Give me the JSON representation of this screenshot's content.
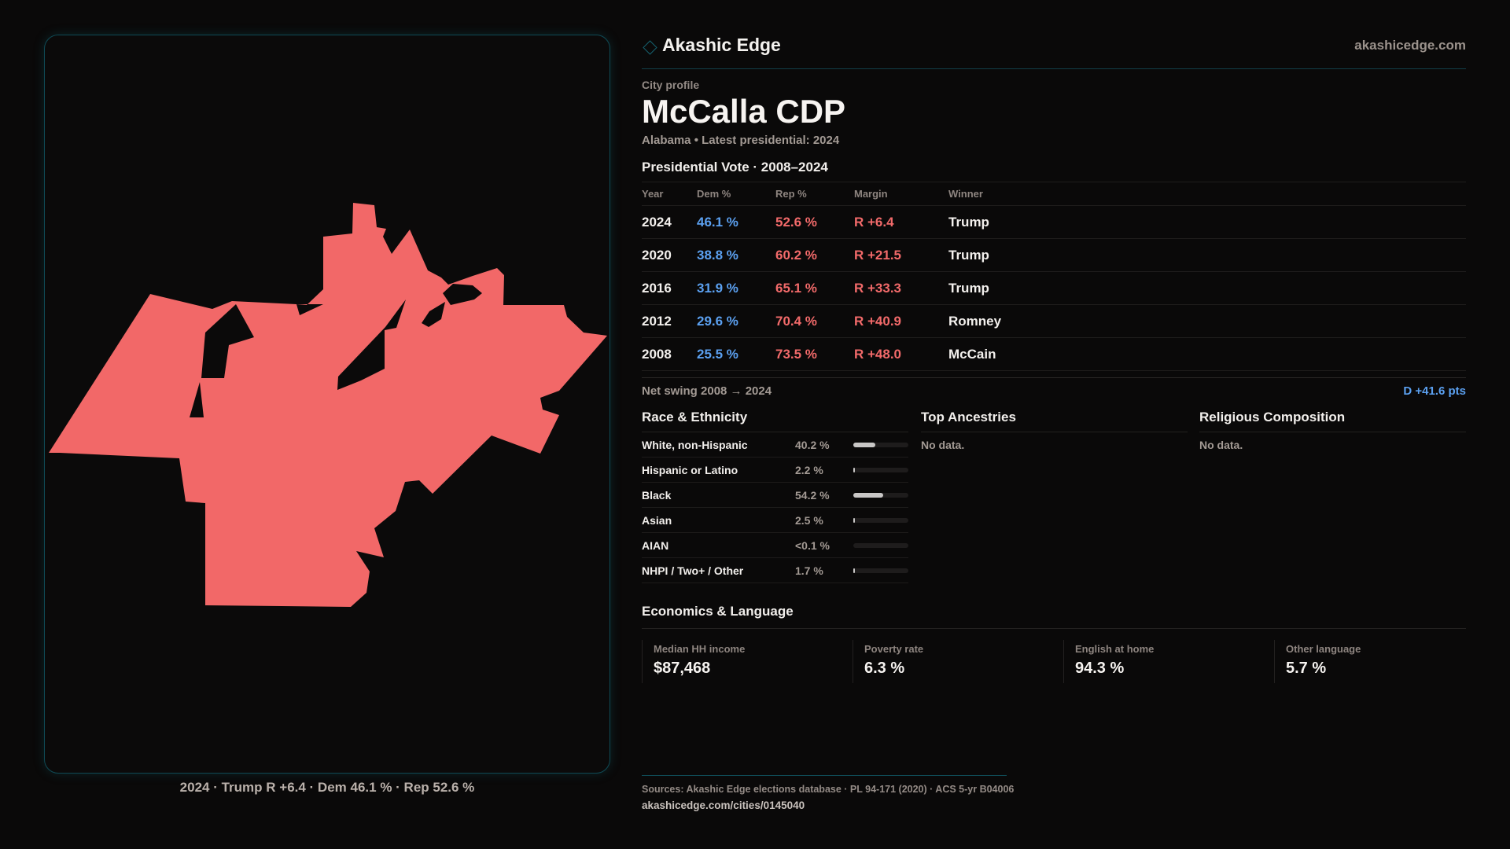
{
  "brand": {
    "name": "Akashic Edge",
    "url": "akashicedge.com",
    "icon": "diamond-outline-icon"
  },
  "profile": {
    "kicker": "City profile",
    "title": "McCalla CDP",
    "subtitle": "Alabama • Latest presidential: 2024"
  },
  "vote": {
    "title": "Presidential Vote · 2008–2024",
    "columns": [
      "Year",
      "Dem %",
      "Rep %",
      "Margin",
      "Winner"
    ],
    "rows": [
      {
        "year": "2024",
        "dem": "46.1 %",
        "rep": "52.6 %",
        "margin": "R +6.4",
        "winner": "Trump"
      },
      {
        "year": "2020",
        "dem": "38.8 %",
        "rep": "60.2 %",
        "margin": "R +21.5",
        "winner": "Trump"
      },
      {
        "year": "2016",
        "dem": "31.9 %",
        "rep": "65.1 %",
        "margin": "R +33.3",
        "winner": "Trump"
      },
      {
        "year": "2012",
        "dem": "29.6 %",
        "rep": "70.4 %",
        "margin": "R +40.9",
        "winner": "Romney"
      },
      {
        "year": "2008",
        "dem": "25.5 %",
        "rep": "73.5 %",
        "margin": "R +48.0",
        "winner": "McCain"
      }
    ],
    "swing_label": "Net swing 2008 → 2024",
    "swing_value": "D +41.6 pts"
  },
  "race": {
    "title": "Race & Ethnicity",
    "rows": [
      {
        "label": "White, non-Hispanic",
        "value": "40.2 %",
        "pct": 40.2
      },
      {
        "label": "Hispanic or Latino",
        "value": "2.2 %",
        "pct": 2.2
      },
      {
        "label": "Black",
        "value": "54.2 %",
        "pct": 54.2
      },
      {
        "label": "Asian",
        "value": "2.5 %",
        "pct": 2.5
      },
      {
        "label": "AIAN",
        "value": "<0.1 %",
        "pct": 0.05
      },
      {
        "label": "NHPI / Two+ / Other",
        "value": "1.7 %",
        "pct": 1.7
      }
    ]
  },
  "ancestries": {
    "title": "Top Ancestries",
    "empty": "No data."
  },
  "religion": {
    "title": "Religious Composition",
    "empty": "No data."
  },
  "econ": {
    "title": "Economics & Language",
    "cells": [
      {
        "label": "Median HH income",
        "value": "$87,468"
      },
      {
        "label": "Poverty rate",
        "value": "6.3 %"
      },
      {
        "label": "English at home",
        "value": "94.3 %"
      },
      {
        "label": "Other language",
        "value": "5.7 %"
      }
    ]
  },
  "map": {
    "caption": "2024 · Trump R +6.4 · Dem 46.1 % · Rep 52.6 %",
    "fill": "#f26868"
  },
  "footer": {
    "sources": "Sources: Akashic Edge elections database · PL 94-171 (2020) · ACS 5-yr B04006",
    "link": "akashicedge.com/cities/0145040"
  },
  "colors": {
    "dem": "#5ba0f0",
    "rep": "#f26a6a",
    "accent": "#0f4a55"
  }
}
